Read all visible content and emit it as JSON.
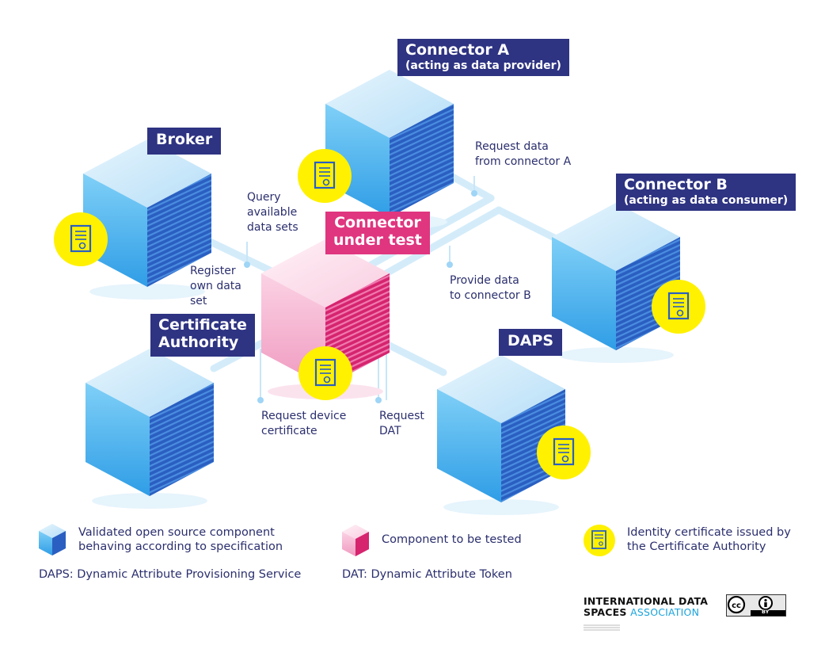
{
  "nodes": {
    "connector_a": {
      "title": "Connector A",
      "subtitle": "(acting as data provider)"
    },
    "connector_b": {
      "title": "Connector B",
      "subtitle": "(acting as data consumer)"
    },
    "broker": {
      "title": "Broker"
    },
    "connector_under_test": {
      "line1": "Connector",
      "line2": "under test"
    },
    "certificate_authority": {
      "line1": "Certificate",
      "line2": "Authority"
    },
    "daps": {
      "title": "DAPS"
    }
  },
  "annotations": {
    "request_data": "Request data\nfrom connector A",
    "query": "Query\navailable\ndata sets",
    "register": "Register\nown data\nset",
    "provide": "Provide data\nto connector B",
    "request_cert": "Request device\ncertificate",
    "request_dat": "Request\nDAT"
  },
  "legend": {
    "validated": "Validated open source component behaving according to specification",
    "tested": "Component to be tested",
    "identity": "Identity certificate issued by the Certificate Authority",
    "daps_def": "DAPS: Dynamic Attribute Provisioning Service",
    "dat_def": "DAT: Dynamic Attribute Token"
  },
  "logo": {
    "line1": "INTERNATIONAL DATA",
    "line2a": "SPACES",
    "line2b": "ASSOCIATION"
  },
  "license": {
    "by": "BY"
  },
  "colors": {
    "blue_top": "#cbe8fa",
    "blue_left": "#4fb9ef",
    "blue_right": "#2a5fc1",
    "pink_top": "#fbe0ec",
    "pink_left": "#f4a9cb",
    "pink_right": "#d6246f",
    "label": "#2e3382",
    "label_pink": "#e0357f",
    "badge": "#fff100",
    "line": "#d4ecfa"
  }
}
